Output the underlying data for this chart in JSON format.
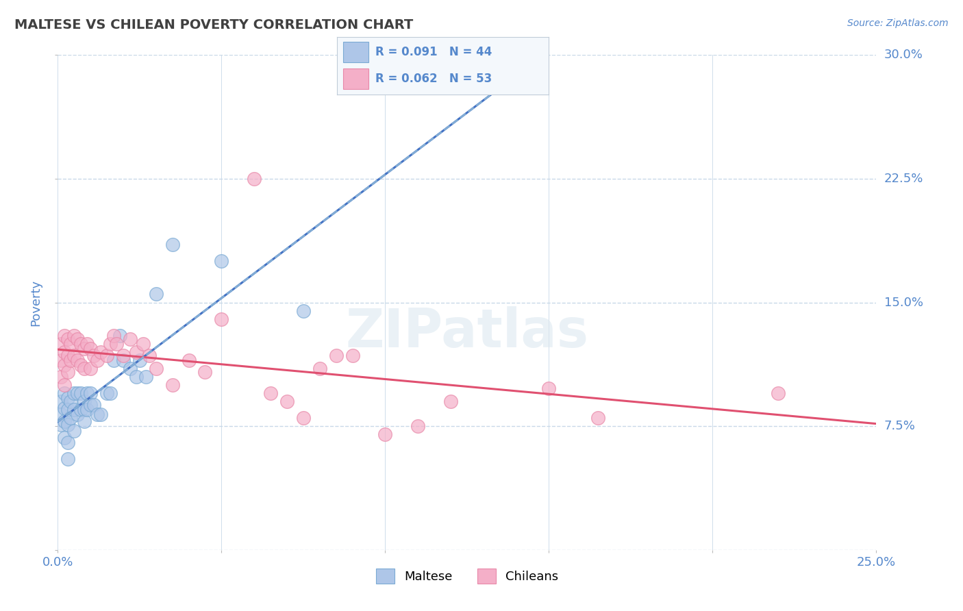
{
  "title": "MALTESE VS CHILEAN POVERTY CORRELATION CHART",
  "source": "Source: ZipAtlas.com",
  "ylabel": "Poverty",
  "xlim": [
    0.0,
    0.25
  ],
  "ylim": [
    0.0,
    0.3
  ],
  "xticks": [
    0.0,
    0.05,
    0.1,
    0.15,
    0.2,
    0.25
  ],
  "yticks": [
    0.0,
    0.075,
    0.15,
    0.225,
    0.3
  ],
  "ytick_labels": [
    "",
    "7.5%",
    "15.0%",
    "22.5%",
    "30.0%"
  ],
  "maltese_R": 0.091,
  "maltese_N": 44,
  "chilean_R": 0.062,
  "chilean_N": 53,
  "maltese_color": "#aec6e8",
  "chilean_color": "#f4afc8",
  "maltese_line_color": "#4472c4",
  "chilean_line_color": "#e05070",
  "maltese_edge_color": "#7aaad4",
  "chilean_edge_color": "#e888a8",
  "grid_color": "#c8d8e8",
  "title_color": "#404040",
  "label_color": "#5588cc",
  "background_color": "#ffffff",
  "legend_bg": "#f4f8fc",
  "legend_border": "#c0ccd8",
  "maltese_x": [
    0.001,
    0.001,
    0.001,
    0.002,
    0.002,
    0.002,
    0.002,
    0.003,
    0.003,
    0.003,
    0.003,
    0.003,
    0.004,
    0.004,
    0.005,
    0.005,
    0.005,
    0.006,
    0.006,
    0.007,
    0.007,
    0.008,
    0.008,
    0.008,
    0.009,
    0.009,
    0.01,
    0.01,
    0.011,
    0.012,
    0.013,
    0.015,
    0.016,
    0.017,
    0.019,
    0.02,
    0.022,
    0.024,
    0.025,
    0.027,
    0.03,
    0.035,
    0.05,
    0.075
  ],
  "maltese_y": [
    0.09,
    0.082,
    0.076,
    0.095,
    0.086,
    0.078,
    0.068,
    0.092,
    0.085,
    0.076,
    0.065,
    0.055,
    0.09,
    0.08,
    0.095,
    0.085,
    0.072,
    0.095,
    0.082,
    0.095,
    0.085,
    0.09,
    0.085,
    0.078,
    0.095,
    0.085,
    0.095,
    0.088,
    0.088,
    0.082,
    0.082,
    0.095,
    0.095,
    0.115,
    0.13,
    0.115,
    0.11,
    0.105,
    0.115,
    0.105,
    0.155,
    0.185,
    0.175,
    0.145
  ],
  "chilean_x": [
    0.001,
    0.001,
    0.001,
    0.002,
    0.002,
    0.002,
    0.002,
    0.003,
    0.003,
    0.003,
    0.004,
    0.004,
    0.005,
    0.005,
    0.006,
    0.006,
    0.007,
    0.007,
    0.008,
    0.008,
    0.009,
    0.01,
    0.01,
    0.011,
    0.012,
    0.013,
    0.015,
    0.016,
    0.017,
    0.018,
    0.02,
    0.022,
    0.024,
    0.026,
    0.028,
    0.03,
    0.035,
    0.04,
    0.045,
    0.05,
    0.06,
    0.065,
    0.07,
    0.075,
    0.08,
    0.085,
    0.09,
    0.1,
    0.11,
    0.12,
    0.15,
    0.165,
    0.22
  ],
  "chilean_y": [
    0.125,
    0.115,
    0.105,
    0.13,
    0.12,
    0.112,
    0.1,
    0.128,
    0.118,
    0.108,
    0.125,
    0.115,
    0.13,
    0.118,
    0.128,
    0.115,
    0.125,
    0.112,
    0.122,
    0.11,
    0.125,
    0.122,
    0.11,
    0.118,
    0.115,
    0.12,
    0.118,
    0.125,
    0.13,
    0.125,
    0.118,
    0.128,
    0.12,
    0.125,
    0.118,
    0.11,
    0.1,
    0.115,
    0.108,
    0.14,
    0.225,
    0.095,
    0.09,
    0.08,
    0.11,
    0.118,
    0.118,
    0.07,
    0.075,
    0.09,
    0.098,
    0.08,
    0.095
  ]
}
